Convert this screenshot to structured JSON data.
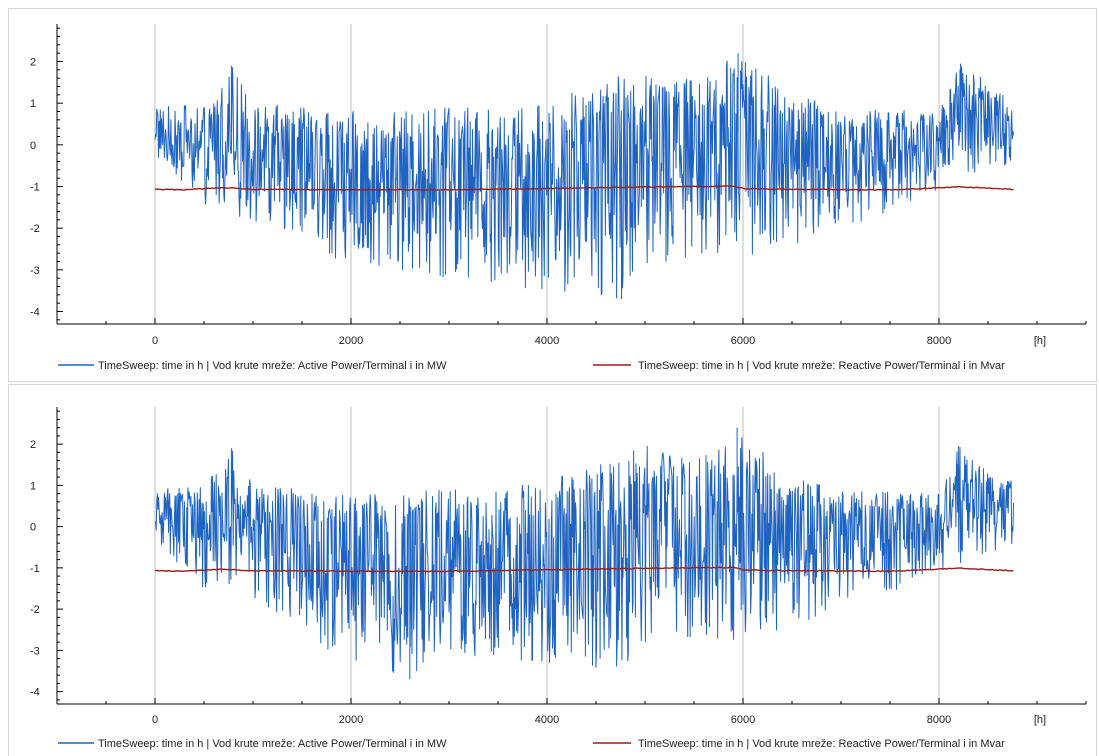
{
  "colors": {
    "active": "#1f63c2",
    "reactive": "#9b1c1c",
    "grid": "#c8c8c8",
    "axis": "#000000"
  },
  "chart_data": [
    {
      "type": "line",
      "x_unit_label": "[h]",
      "xlim": [
        -1000,
        9500
      ],
      "ylim": [
        -4.3,
        2.9
      ],
      "x_ticks": [
        0,
        2000,
        4000,
        6000,
        8000
      ],
      "y_ticks": [
        -4,
        -3,
        -2,
        -1,
        0,
        1,
        2
      ],
      "grid": "vertical",
      "legend_placement": "bottom",
      "series": [
        {
          "name": "TimeSweep: time in h | Vod krute mreže: Active Power/Terminal i in MW",
          "color": "#1f63c2",
          "x_range": [
            0,
            8760
          ],
          "peaks": [
            {
              "x": 780,
              "y": 1.9
            },
            {
              "x": 5950,
              "y": 2.2
            },
            {
              "x": 8220,
              "y": 1.95
            },
            {
              "x": 4760,
              "y": -3.7
            }
          ],
          "upper_envelope": [
            [
              0,
              0.9
            ],
            [
              500,
              1.0
            ],
            [
              780,
              1.9
            ],
            [
              1000,
              1.0
            ],
            [
              2000,
              0.8
            ],
            [
              3000,
              0.9
            ],
            [
              4000,
              1.0
            ],
            [
              4500,
              1.5
            ],
            [
              5000,
              1.8
            ],
            [
              5500,
              1.6
            ],
            [
              5950,
              2.2
            ],
            [
              6500,
              1.3
            ],
            [
              7000,
              0.9
            ],
            [
              8000,
              0.8
            ],
            [
              8220,
              1.95
            ],
            [
              8760,
              1.1
            ]
          ],
          "lower_envelope": [
            [
              0,
              -0.4
            ],
            [
              500,
              -1.5
            ],
            [
              1000,
              -1.8
            ],
            [
              1500,
              -2.4
            ],
            [
              2000,
              -2.9
            ],
            [
              2500,
              -3.1
            ],
            [
              3000,
              -3.2
            ],
            [
              4000,
              -3.5
            ],
            [
              4760,
              -3.7
            ],
            [
              5000,
              -3.0
            ],
            [
              5500,
              -2.7
            ],
            [
              6000,
              -2.8
            ],
            [
              6500,
              -2.4
            ],
            [
              7000,
              -2.0
            ],
            [
              7500,
              -1.6
            ],
            [
              8000,
              -1.2
            ],
            [
              8760,
              -0.4
            ]
          ]
        },
        {
          "name": "TimeSweep: time in h | Vod krute mreže: Reactive Power/Terminal i in Mvar",
          "color": "#9b1c1c",
          "points": [
            [
              0,
              -1.07
            ],
            [
              300,
              -1.08
            ],
            [
              700,
              -1.03
            ],
            [
              1000,
              -1.07
            ],
            [
              2000,
              -1.08
            ],
            [
              3000,
              -1.08
            ],
            [
              4000,
              -1.05
            ],
            [
              5000,
              -1.01
            ],
            [
              5900,
              -0.99
            ],
            [
              6000,
              -1.05
            ],
            [
              6500,
              -1.07
            ],
            [
              7500,
              -1.08
            ],
            [
              8200,
              -1.01
            ],
            [
              8760,
              -1.07
            ]
          ]
        }
      ]
    },
    {
      "type": "line",
      "x_unit_label": "[h]",
      "xlim": [
        -1000,
        9500
      ],
      "ylim": [
        -4.3,
        2.9
      ],
      "x_ticks": [
        0,
        2000,
        4000,
        6000,
        8000
      ],
      "y_ticks": [
        -4,
        -3,
        -2,
        -1,
        0,
        1,
        2
      ],
      "grid": "vertical",
      "legend_placement": "bottom",
      "series": [
        {
          "name": "TimeSweep: time in h | Vod krute mreže: Active Power/Terminal i in MW",
          "color": "#1f63c2",
          "x_range": [
            0,
            8760
          ],
          "peaks": [
            {
              "x": 780,
              "y": 1.9
            },
            {
              "x": 5940,
              "y": 2.4
            },
            {
              "x": 8200,
              "y": 1.95
            },
            {
              "x": 2600,
              "y": -3.7
            }
          ],
          "upper_envelope": [
            [
              0,
              0.9
            ],
            [
              500,
              1.0
            ],
            [
              780,
              1.9
            ],
            [
              1000,
              1.0
            ],
            [
              2000,
              0.8
            ],
            [
              3000,
              0.9
            ],
            [
              4000,
              1.1
            ],
            [
              4500,
              1.5
            ],
            [
              5000,
              2.0
            ],
            [
              5500,
              1.6
            ],
            [
              5940,
              2.4
            ],
            [
              6500,
              1.2
            ],
            [
              7000,
              0.9
            ],
            [
              8000,
              0.8
            ],
            [
              8200,
              1.95
            ],
            [
              8760,
              1.1
            ]
          ],
          "lower_envelope": [
            [
              0,
              -0.4
            ],
            [
              500,
              -1.5
            ],
            [
              1000,
              -1.8
            ],
            [
              1500,
              -2.4
            ],
            [
              1900,
              -3.3
            ],
            [
              2600,
              -3.7
            ],
            [
              3000,
              -3.2
            ],
            [
              4000,
              -3.3
            ],
            [
              4700,
              -3.5
            ],
            [
              5000,
              -3.0
            ],
            [
              5500,
              -2.7
            ],
            [
              6000,
              -2.8
            ],
            [
              6500,
              -2.4
            ],
            [
              7000,
              -2.0
            ],
            [
              7500,
              -1.6
            ],
            [
              8000,
              -1.2
            ],
            [
              8760,
              -0.4
            ]
          ]
        },
        {
          "name": "TimeSweep: time in h | Vod krute mreže: Reactive Power/Terminal i in Mvar",
          "color": "#9b1c1c",
          "points": [
            [
              0,
              -1.07
            ],
            [
              300,
              -1.08
            ],
            [
              700,
              -1.03
            ],
            [
              1000,
              -1.07
            ],
            [
              2000,
              -1.08
            ],
            [
              3000,
              -1.08
            ],
            [
              4000,
              -1.05
            ],
            [
              5000,
              -1.01
            ],
            [
              5900,
              -0.99
            ],
            [
              6000,
              -1.05
            ],
            [
              6500,
              -1.07
            ],
            [
              7500,
              -1.08
            ],
            [
              8200,
              -1.01
            ],
            [
              8760,
              -1.07
            ]
          ]
        }
      ]
    }
  ]
}
